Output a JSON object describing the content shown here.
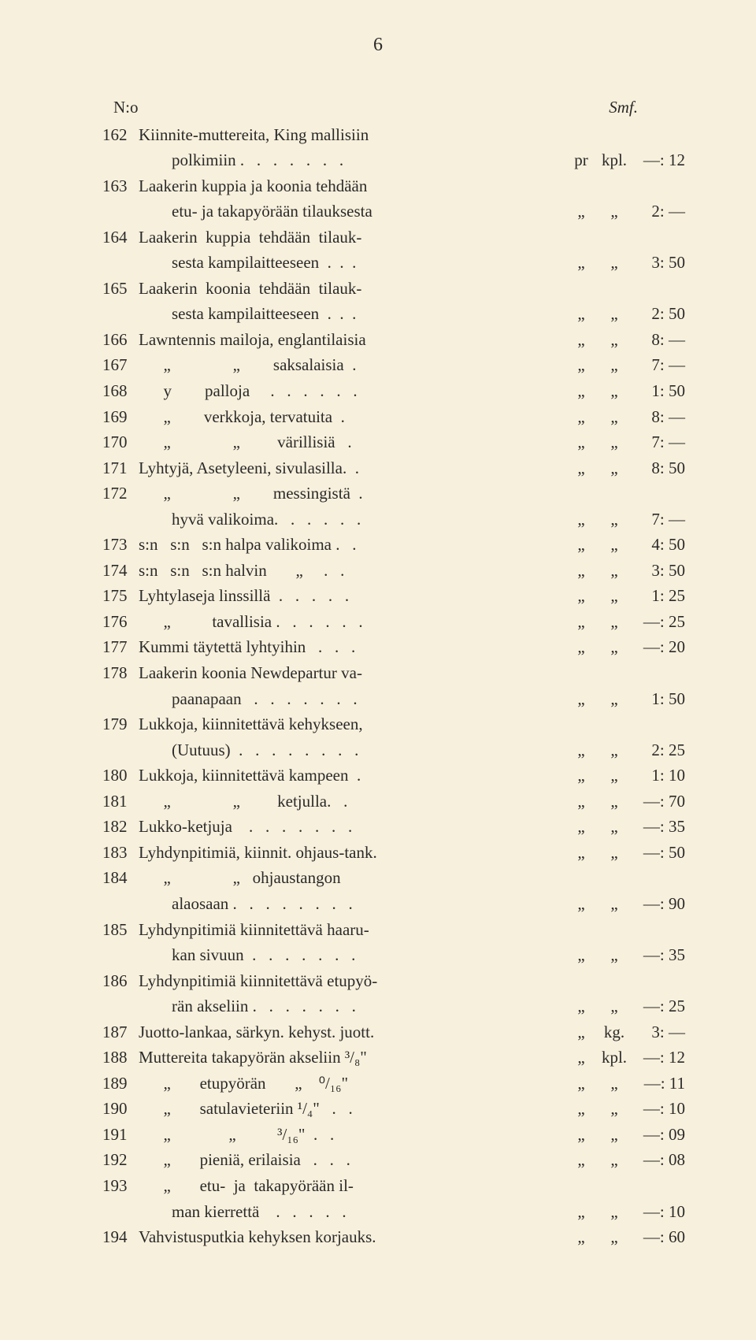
{
  "page_number": "6",
  "header": {
    "left": "N:o",
    "right": "Smf."
  },
  "entries": [
    {
      "num": "162",
      "lines": [
        {
          "desc": "Kiinnite-muttereita, King mallisiin"
        },
        {
          "desc": "        polkimiin .   .   .   .   .   .   .",
          "u1": "pr",
          "u2": "kpl.",
          "price": "—: 12"
        }
      ]
    },
    {
      "num": "163",
      "lines": [
        {
          "desc": "Laakerin kuppia ja koonia tehdään"
        },
        {
          "desc": "        etu- ja takapyörään tilauksesta",
          "u1": "„",
          "u2": "„",
          "price": "2: —"
        }
      ]
    },
    {
      "num": "164",
      "lines": [
        {
          "desc": "Laakerin  kuppia  tehdään  tilauk-"
        },
        {
          "desc": "        sesta kampilaitteeseen  .  .  .",
          "u1": "„",
          "u2": "„",
          "price": "3: 50"
        }
      ]
    },
    {
      "num": "165",
      "lines": [
        {
          "desc": "Laakerin  koonia  tehdään  tilauk-"
        },
        {
          "desc": "        sesta kampilaitteeseen  .  .  .",
          "u1": "„",
          "u2": "„",
          "price": "2: 50"
        }
      ]
    },
    {
      "num": "166",
      "lines": [
        {
          "desc": "Lawntennis mailoja, englantilaisia",
          "u1": "„",
          "u2": "„",
          "price": "8: —"
        }
      ]
    },
    {
      "num": "167",
      "lines": [
        {
          "desc": "      „               „        saksalaisia  .",
          "u1": "„",
          "u2": "„",
          "price": "7: —"
        }
      ]
    },
    {
      "num": "168",
      "lines": [
        {
          "desc": "      y        palloja     .   .   .   .   .   .",
          "u1": "„",
          "u2": "„",
          "price": "1: 50"
        }
      ]
    },
    {
      "num": "169",
      "lines": [
        {
          "desc": "      „        verkkoja, tervatuita  .",
          "u1": "„",
          "u2": "„",
          "price": "8: —"
        }
      ]
    },
    {
      "num": "170",
      "lines": [
        {
          "desc": "      „               „         värillisiä   .",
          "u1": "„",
          "u2": "„",
          "price": "7: —"
        }
      ]
    },
    {
      "num": "171",
      "lines": [
        {
          "desc": "Lyhtyjä, Asetyleeni, sivulasilla.  .",
          "u1": "„",
          "u2": "„",
          "price": "8: 50"
        }
      ]
    },
    {
      "num": "172",
      "lines": [
        {
          "desc": "      „               „        messingistä  ."
        },
        {
          "desc": "        hyvä valikoima.   .   .   .   .   .",
          "u1": "„",
          "u2": "„",
          "price": "7: —"
        }
      ]
    },
    {
      "num": "173",
      "lines": [
        {
          "desc": "s:n   s:n   s:n halpa valikoima .   .",
          "u1": "„",
          "u2": "„",
          "price": "4: 50"
        }
      ]
    },
    {
      "num": "174",
      "lines": [
        {
          "desc": "s:n   s:n   s:n halvin       „     .   .",
          "u1": "„",
          "u2": "„",
          "price": "3: 50"
        }
      ]
    },
    {
      "num": "175",
      "lines": [
        {
          "desc": "Lyhtylaseja linssillä  .   .   .   .   .",
          "u1": "„",
          "u2": "„",
          "price": "1: 25"
        }
      ]
    },
    {
      "num": "176",
      "lines": [
        {
          "desc": "      „          tavallisia .   .   .   .   .   .",
          "u1": "„",
          "u2": "„",
          "price": "—: 25"
        }
      ]
    },
    {
      "num": "177",
      "lines": [
        {
          "desc": "Kummi täytettä lyhtyihin   .   .   .",
          "u1": "„",
          "u2": "„",
          "price": "—: 20"
        }
      ]
    },
    {
      "num": "178",
      "lines": [
        {
          "desc": "Laakerin koonia Newdepartur va-"
        },
        {
          "desc": "        paanapaan   .   .   .   .   .   .   .",
          "u1": "„",
          "u2": "„",
          "price": "1: 50"
        }
      ]
    },
    {
      "num": "179",
      "lines": [
        {
          "desc": "Lukkoja, kiinnitettävä kehykseen,"
        },
        {
          "desc": "        (Uutuus)  .   .   .   .   .   .   .   .",
          "u1": "„",
          "u2": "„",
          "price": "2: 25"
        }
      ]
    },
    {
      "num": "180",
      "lines": [
        {
          "desc": "Lukkoja, kiinnitettävä kampeen  .",
          "u1": "„",
          "u2": "„",
          "price": "1: 10"
        }
      ]
    },
    {
      "num": "181",
      "lines": [
        {
          "desc": "      „               „         ketjulla.   .",
          "u1": "„",
          "u2": "„",
          "price": "—: 70"
        }
      ]
    },
    {
      "num": "182",
      "lines": [
        {
          "desc": "Lukko-ketjuja    .   .   .   .   .   .   .",
          "u1": "„",
          "u2": "„",
          "price": "—: 35"
        }
      ]
    },
    {
      "num": "183",
      "lines": [
        {
          "desc": "Lyhdynpitimiä, kiinnit. ohjaus-tank.",
          "u1": "„",
          "u2": "„",
          "price": "—: 50"
        }
      ]
    },
    {
      "num": "184",
      "lines": [
        {
          "desc": "      „               „   ohjaustangon"
        },
        {
          "desc": "        alaosaan .   .   .   .   .   .   .   .",
          "u1": "„",
          "u2": "„",
          "price": "—: 90"
        }
      ]
    },
    {
      "num": "185",
      "lines": [
        {
          "desc": "Lyhdynpitimiä kiinnitettävä haaru-"
        },
        {
          "desc": "        kan sivuun  .   .   .   .   .   .   .",
          "u1": "„",
          "u2": "„",
          "price": "—: 35"
        }
      ]
    },
    {
      "num": "186",
      "lines": [
        {
          "desc": "Lyhdynpitimiä kiinnitettävä etupyö-"
        },
        {
          "desc": "        rän akseliin .   .   .   .   .   .   .",
          "u1": "„",
          "u2": "„",
          "price": "—: 25"
        }
      ]
    },
    {
      "num": "187",
      "lines": [
        {
          "desc": "Juotto-lankaa, särkyn. kehyst. juott.",
          "u1": "„",
          "u2": "kg.",
          "price": "3: —"
        }
      ]
    },
    {
      "num": "188",
      "lines": [
        {
          "desc": "Muttereita takapyörän akseliin ³/₈\"",
          "u1": "„",
          "u2": "kpl.",
          "price": "—: 12"
        }
      ]
    },
    {
      "num": "189",
      "lines": [
        {
          "desc": "      „       etupyörän       „    ⁰/₁₆\"",
          "u1": "„",
          "u2": "„",
          "price": "—: 11"
        }
      ]
    },
    {
      "num": "190",
      "lines": [
        {
          "desc": "      „       satulavieteriin ¹/₄\"   .   .",
          "u1": "„",
          "u2": "„",
          "price": "—: 10"
        }
      ]
    },
    {
      "num": "191",
      "lines": [
        {
          "desc": "      „              „          ³/₁₆\"  .   .",
          "u1": "„",
          "u2": "„",
          "price": "—: 09"
        }
      ]
    },
    {
      "num": "192",
      "lines": [
        {
          "desc": "      „       pieniä, erilaisia   .   .   .",
          "u1": "„",
          "u2": "„",
          "price": "—: 08"
        }
      ]
    },
    {
      "num": "193",
      "lines": [
        {
          "desc": "      „       etu-  ja  takapyörään il-"
        },
        {
          "desc": "        man kierrettä    .   .   .   .   .",
          "u1": "„",
          "u2": "„",
          "price": "—: 10"
        }
      ]
    },
    {
      "num": "194",
      "lines": [
        {
          "desc": "Vahvistusputkia kehyksen korjauks.",
          "u1": "„",
          "u2": "„",
          "price": "—: 60"
        }
      ]
    }
  ]
}
